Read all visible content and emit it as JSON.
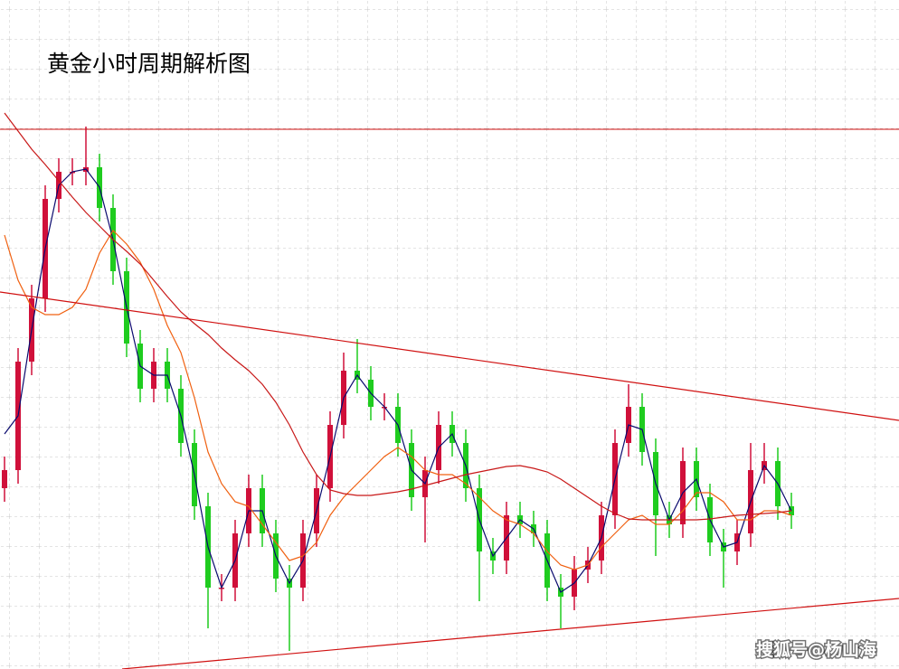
{
  "chart_data": {
    "type": "candlestick",
    "title": "黄金小时周期解析图",
    "watermark": "搜狐号@杨山海",
    "ylim": [
      0,
      740
    ],
    "up_color": "#d0103a",
    "down_color": "#1fcc1f",
    "open": [
      200,
      220,
      340,
      410,
      520,
      550,
      550,
      555,
      510,
      440,
      360,
      310,
      340,
      310,
      250,
      180,
      90,
      90,
      150,
      200,
      150,
      100,
      90,
      150,
      200,
      270,
      330,
      320,
      290,
      290,
      250,
      190,
      220,
      270,
      250,
      200,
      130,
      120,
      170,
      160,
      150,
      90,
      80,
      110,
      120,
      170,
      250,
      290,
      240,
      170,
      160,
      230,
      190,
      140,
      130,
      150,
      220,
      230,
      180
    ],
    "high": [
      235,
      355,
      425,
      535,
      565,
      565,
      600,
      570,
      525,
      455,
      375,
      355,
      355,
      325,
      265,
      195,
      105,
      165,
      215,
      215,
      165,
      115,
      165,
      215,
      285,
      350,
      365,
      335,
      305,
      305,
      265,
      235,
      285,
      285,
      265,
      215,
      145,
      185,
      185,
      175,
      165,
      105,
      125,
      135,
      185,
      265,
      315,
      305,
      255,
      185,
      245,
      245,
      205,
      155,
      165,
      250,
      250,
      245,
      195
    ],
    "low": [
      185,
      205,
      325,
      395,
      505,
      535,
      535,
      495,
      425,
      345,
      295,
      295,
      295,
      235,
      165,
      45,
      75,
      75,
      135,
      135,
      85,
      20,
      75,
      135,
      185,
      255,
      305,
      275,
      275,
      235,
      175,
      140,
      205,
      235,
      185,
      75,
      105,
      105,
      145,
      135,
      75,
      45,
      65,
      95,
      105,
      155,
      235,
      225,
      125,
      145,
      145,
      175,
      125,
      90,
      115,
      135,
      205,
      165,
      155
    ],
    "close": [
      220,
      340,
      410,
      520,
      550,
      550,
      555,
      510,
      440,
      360,
      310,
      340,
      310,
      250,
      180,
      90,
      90,
      150,
      200,
      150,
      100,
      90,
      150,
      200,
      270,
      330,
      320,
      290,
      290,
      250,
      190,
      220,
      270,
      250,
      200,
      130,
      120,
      170,
      160,
      150,
      90,
      80,
      110,
      120,
      170,
      250,
      290,
      240,
      170,
      160,
      230,
      190,
      140,
      130,
      150,
      220,
      230,
      180,
      170
    ],
    "series": [
      {
        "color": "#0a0a6e",
        "values": [
          260,
          280,
          375,
          465,
          535,
          550,
          553,
          533,
          475,
          400,
          335,
          325,
          325,
          280,
          215,
          135,
          90,
          120,
          175,
          175,
          125,
          95,
          120,
          175,
          235,
          300,
          325,
          305,
          290,
          270,
          220,
          205,
          245,
          260,
          225,
          165,
          125,
          145,
          165,
          155,
          120,
          85,
          95,
          115,
          145,
          210,
          270,
          265,
          205,
          165,
          195,
          210,
          165,
          135,
          140,
          185,
          225,
          205,
          175
        ]
      },
      {
        "color": "#f06010",
        "values": [
          480,
          430,
          400,
          392,
          392,
          400,
          420,
          460,
          485,
          470,
          450,
          420,
          380,
          350,
          300,
          240,
          205,
          185,
          180,
          160,
          140,
          120,
          125,
          140,
          170,
          190,
          205,
          220,
          235,
          245,
          235,
          220,
          215,
          215,
          205,
          190,
          175,
          165,
          160,
          150,
          130,
          115,
          110,
          115,
          135,
          150,
          165,
          170,
          160,
          160,
          175,
          195,
          195,
          185,
          165,
          165,
          175,
          175,
          170
        ]
      },
      {
        "color": "#c81818",
        "values": [
          615,
          595,
          575,
          558,
          540,
          522,
          505,
          490,
          475,
          462,
          448,
          430,
          412,
          395,
          382,
          370,
          355,
          342,
          330,
          315,
          295,
          270,
          240,
          215,
          198,
          194,
          192,
          192,
          194,
          196,
          199,
          203,
          207,
          211,
          215,
          218,
          221,
          224,
          225,
          222,
          218,
          210,
          200,
          190,
          180,
          172,
          166,
          165,
          165,
          165,
          165,
          165,
          166,
          168,
          170,
          171,
          172,
          173,
          175
        ]
      }
    ]
  }
}
